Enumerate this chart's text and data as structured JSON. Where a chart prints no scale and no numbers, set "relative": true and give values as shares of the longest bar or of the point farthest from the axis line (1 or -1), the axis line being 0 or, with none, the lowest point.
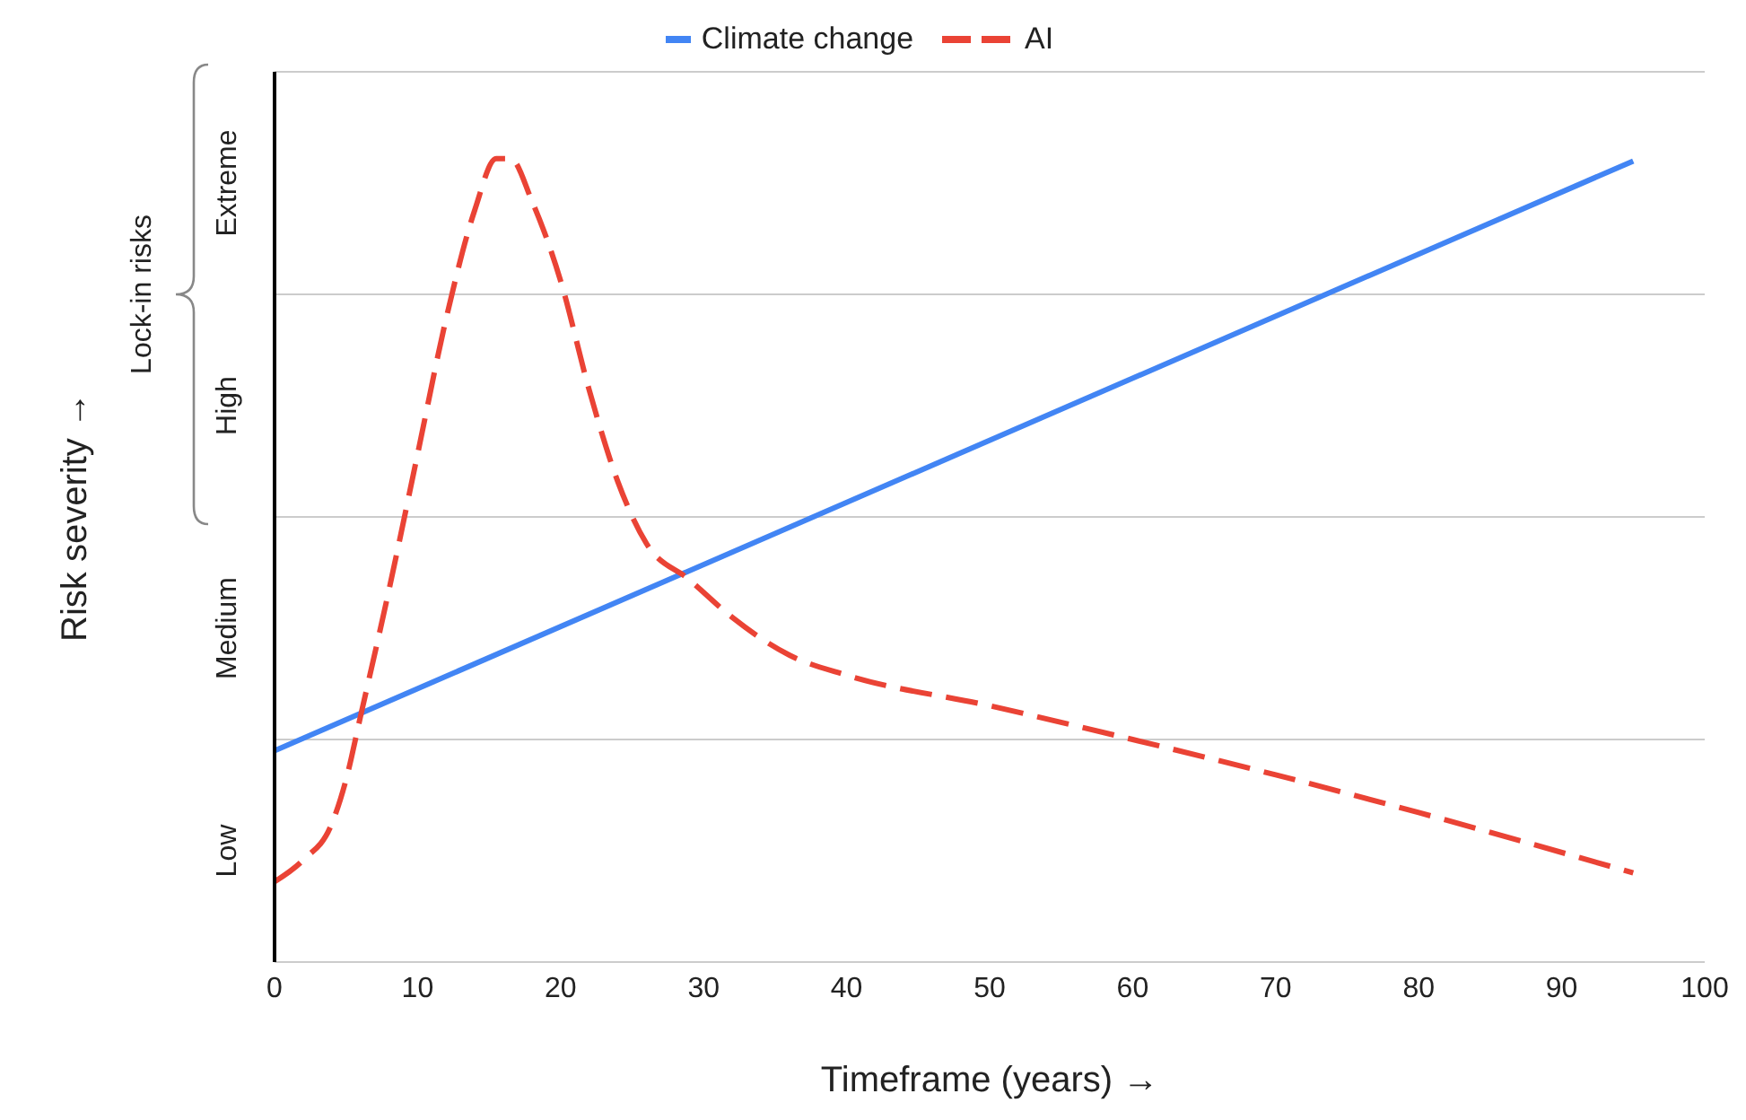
{
  "chart_data": {
    "type": "line",
    "xlabel": "Timeframe (years) →",
    "ylabel": "Risk severity →",
    "annotations": [
      "Lock-in risks",
      "Low",
      "Medium",
      "High",
      "Extreme"
    ],
    "xlim": [
      0,
      100
    ],
    "xticks": [
      0,
      10,
      20,
      30,
      40,
      50,
      60,
      70,
      80,
      90,
      100
    ],
    "relative": true,
    "ref_lines": [
      {
        "axis": "y",
        "value": 0.277,
        "color": "#cccccc"
      },
      {
        "axis": "y",
        "value": 0.554,
        "color": "#cccccc"
      },
      {
        "axis": "y",
        "value": 0.831,
        "color": "#cccccc"
      },
      {
        "axis": "y",
        "value": 1.108,
        "color": "#cccccc"
      }
    ],
    "legend": "top",
    "marker": "none",
    "series": [
      {
        "name": "Climate change",
        "color": "#4285f4",
        "line_style": "solid",
        "x": [
          0,
          95
        ],
        "values": [
          0.263,
          0.997
        ]
      },
      {
        "name": "AI",
        "color": "#ea4335",
        "line_style": "dashed",
        "x": [
          0,
          2,
          4,
          5,
          6,
          8,
          10,
          12,
          14,
          15.5,
          16.5,
          18,
          20,
          22,
          24,
          26,
          29,
          32,
          36,
          40,
          50,
          60,
          70,
          80,
          95
        ],
        "values": [
          0.1,
          0.127,
          0.172,
          0.227,
          0.305,
          0.463,
          0.632,
          0.801,
          0.936,
          1,
          1,
          0.947,
          0.848,
          0.712,
          0.598,
          0.521,
          0.476,
          0.429,
          0.382,
          0.357,
          0.319,
          0.277,
          0.233,
          0.186,
          0.111
        ]
      }
    ]
  }
}
